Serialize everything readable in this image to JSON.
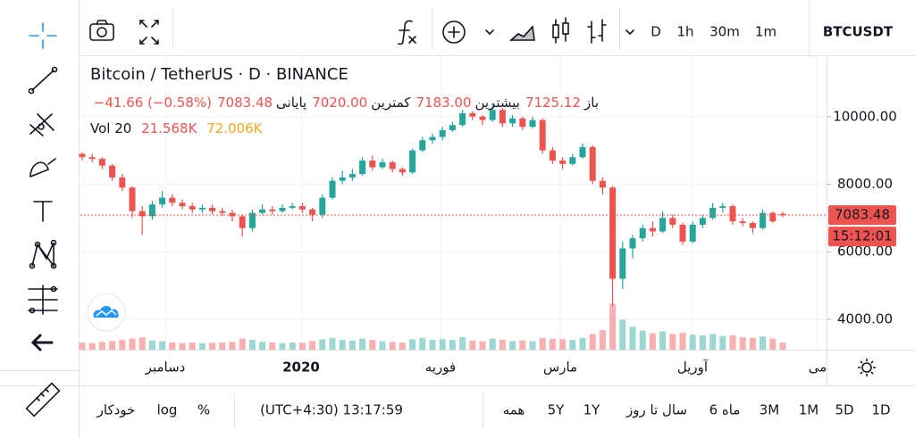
{
  "toolbar": {
    "intervals": [
      "D",
      "1h",
      "30m",
      "1m"
    ],
    "symbol": "BTCUSDT"
  },
  "legend": {
    "title": "Bitcoin / TetherUS · D · BINANCE",
    "ohlc": [
      {
        "label": "باز",
        "value": "7125.12"
      },
      {
        "label": "بیشترین",
        "value": "7183.00"
      },
      {
        "label": "کمترین",
        "value": "7020.00"
      },
      {
        "label": "پایانی",
        "value": "7083.48"
      }
    ],
    "change": "−41.66 (−0.58%)",
    "volume": {
      "label": "Vol 20",
      "values": [
        "21.568K",
        "72.006K"
      ]
    }
  },
  "chart_data": {
    "type": "candlestick",
    "candles": [
      [
        8900,
        8950,
        8700,
        8800
      ],
      [
        8800,
        8900,
        8650,
        8750
      ],
      [
        8750,
        8800,
        8450,
        8550
      ],
      [
        8550,
        8600,
        8100,
        8200
      ],
      [
        8200,
        8300,
        7800,
        7900
      ],
      [
        7900,
        7950,
        7000,
        7200
      ],
      [
        7200,
        7350,
        6500,
        7050
      ],
      [
        7050,
        7500,
        6950,
        7400
      ],
      [
        7400,
        7800,
        7300,
        7600
      ],
      [
        7600,
        7700,
        7350,
        7450
      ],
      [
        7450,
        7550,
        7250,
        7350
      ],
      [
        7350,
        7450,
        7150,
        7250
      ],
      [
        7250,
        7400,
        7150,
        7300
      ],
      [
        7300,
        7400,
        7100,
        7200
      ],
      [
        7200,
        7300,
        7050,
        7150
      ],
      [
        7150,
        7250,
        6900,
        7050
      ],
      [
        7050,
        7100,
        6450,
        6700
      ],
      [
        6700,
        7250,
        6600,
        7150
      ],
      [
        7150,
        7400,
        7100,
        7250
      ],
      [
        7250,
        7350,
        7100,
        7200
      ],
      [
        7200,
        7400,
        7150,
        7300
      ],
      [
        7300,
        7450,
        7250,
        7350
      ],
      [
        7350,
        7450,
        7150,
        7250
      ],
      [
        7250,
        7300,
        6900,
        7100
      ],
      [
        7100,
        7700,
        7000,
        7600
      ],
      [
        7600,
        8200,
        7550,
        8100
      ],
      [
        8100,
        8400,
        8000,
        8200
      ],
      [
        8200,
        8450,
        8100,
        8300
      ],
      [
        8300,
        8800,
        8250,
        8700
      ],
      [
        8700,
        8850,
        8400,
        8500
      ],
      [
        8500,
        8750,
        8450,
        8650
      ],
      [
        8650,
        8700,
        8350,
        8450
      ],
      [
        8450,
        8500,
        8250,
        8350
      ],
      [
        8350,
        9050,
        8300,
        9000
      ],
      [
        9000,
        9400,
        8950,
        9300
      ],
      [
        9300,
        9500,
        9200,
        9400
      ],
      [
        9400,
        9700,
        9300,
        9600
      ],
      [
        9600,
        9850,
        9550,
        9750
      ],
      [
        9750,
        10200,
        9700,
        10100
      ],
      [
        10100,
        10150,
        9900,
        10000
      ],
      [
        10000,
        10050,
        9750,
        9900
      ],
      [
        9900,
        10400,
        9850,
        10200
      ],
      [
        10200,
        10250,
        9700,
        9800
      ],
      [
        9800,
        10050,
        9700,
        9950
      ],
      [
        9950,
        10000,
        9600,
        9700
      ],
      [
        9700,
        10000,
        9650,
        9900
      ],
      [
        9900,
        9950,
        8900,
        9000
      ],
      [
        9000,
        9100,
        8600,
        8700
      ],
      [
        8700,
        8800,
        8450,
        8600
      ],
      [
        8600,
        8900,
        8550,
        8800
      ],
      [
        8800,
        9200,
        8750,
        9100
      ],
      [
        9100,
        9150,
        8000,
        8100
      ],
      [
        8100,
        8200,
        7700,
        7900
      ],
      [
        7900,
        7950,
        4400,
        5200
      ],
      [
        5200,
        6300,
        4900,
        6100
      ],
      [
        6100,
        6500,
        5800,
        6400
      ],
      [
        6400,
        6800,
        6300,
        6700
      ],
      [
        6700,
        6900,
        6450,
        6600
      ],
      [
        6600,
        7200,
        6550,
        7000
      ],
      [
        7000,
        7100,
        6700,
        6800
      ],
      [
        6800,
        6850,
        6200,
        6300
      ],
      [
        6300,
        6900,
        6250,
        6800
      ],
      [
        6800,
        7100,
        6700,
        7000
      ],
      [
        7000,
        7450,
        6950,
        7300
      ],
      [
        7300,
        7450,
        7150,
        7350
      ],
      [
        7350,
        7400,
        6800,
        6900
      ],
      [
        6900,
        7000,
        6750,
        6850
      ],
      [
        6850,
        6900,
        6550,
        6700
      ],
      [
        6700,
        7250,
        6650,
        7150
      ],
      [
        7150,
        7200,
        6850,
        6900
      ],
      [
        7125.12,
        7183,
        7020,
        7083.48
      ]
    ],
    "volumes": [
      22,
      20,
      24,
      26,
      30,
      34,
      38,
      28,
      26,
      22,
      20,
      22,
      20,
      21,
      22,
      24,
      34,
      30,
      24,
      22,
      20,
      22,
      21,
      26,
      32,
      36,
      30,
      28,
      34,
      30,
      26,
      24,
      22,
      32,
      36,
      30,
      32,
      30,
      38,
      28,
      26,
      34,
      30,
      26,
      28,
      26,
      36,
      34,
      32,
      30,
      36,
      48,
      60,
      140,
      92,
      70,
      58,
      50,
      56,
      48,
      52,
      46,
      44,
      48,
      42,
      44,
      38,
      36,
      40,
      34,
      22
    ],
    "ylim": [
      3100,
      11790
    ],
    "yticks": [
      {
        "value": 10000,
        "label": "10000.00"
      },
      {
        "value": 8000,
        "label": "8000.00"
      },
      {
        "value": 6000,
        "label": "6000.00"
      },
      {
        "value": 4000,
        "label": "4000.00"
      }
    ],
    "x_labels": [
      "دسامبر",
      "2020",
      "فوریه",
      "مارس",
      "آوریل",
      "می"
    ],
    "countdown": "15:12:01",
    "up_color": "#26a69a",
    "down_color": "#ef5350",
    "grid": true
  },
  "bottom_bar": {
    "ranges": [
      "1D",
      "5D",
      "1M",
      "3M",
      "6 ماه",
      "سال تا روز",
      "1Y",
      "5Y",
      "همه"
    ],
    "clock": "(UTC+4:30) 13:17:59",
    "options": [
      "%",
      "log"
    ],
    "auto": "خودکار"
  }
}
